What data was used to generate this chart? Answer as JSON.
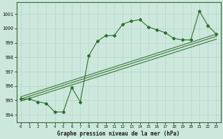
{
  "xlabel": "Graphe pression niveau de la mer (hPa)",
  "ylim": [
    993.5,
    1001.8
  ],
  "xlim": [
    -0.5,
    23.5
  ],
  "yticks": [
    994,
    995,
    996,
    997,
    998,
    999,
    1000,
    1001
  ],
  "xticks": [
    0,
    1,
    2,
    3,
    4,
    5,
    6,
    7,
    8,
    9,
    10,
    11,
    12,
    13,
    14,
    15,
    16,
    17,
    18,
    19,
    20,
    21,
    22,
    23
  ],
  "bg_color": "#cce8dc",
  "grid_color": "#b8d4cc",
  "line_color": "#2d6e2d",
  "main_line": [
    995.1,
    995.1,
    994.9,
    994.8,
    994.2,
    994.2,
    995.9,
    994.9,
    998.1,
    999.1,
    999.5,
    999.5,
    1000.3,
    1000.5,
    1000.6,
    1000.1,
    999.9,
    999.7,
    999.3,
    999.2,
    999.2,
    1001.2,
    1000.2,
    999.6
  ],
  "trend_lines": [
    {
      "x0": 0,
      "y0": 994.95,
      "x1": 23,
      "y1": 999.25
    },
    {
      "x0": 0,
      "y0": 995.1,
      "x1": 23,
      "y1": 999.45
    },
    {
      "x0": 0,
      "y0": 995.25,
      "x1": 23,
      "y1": 999.6
    }
  ]
}
